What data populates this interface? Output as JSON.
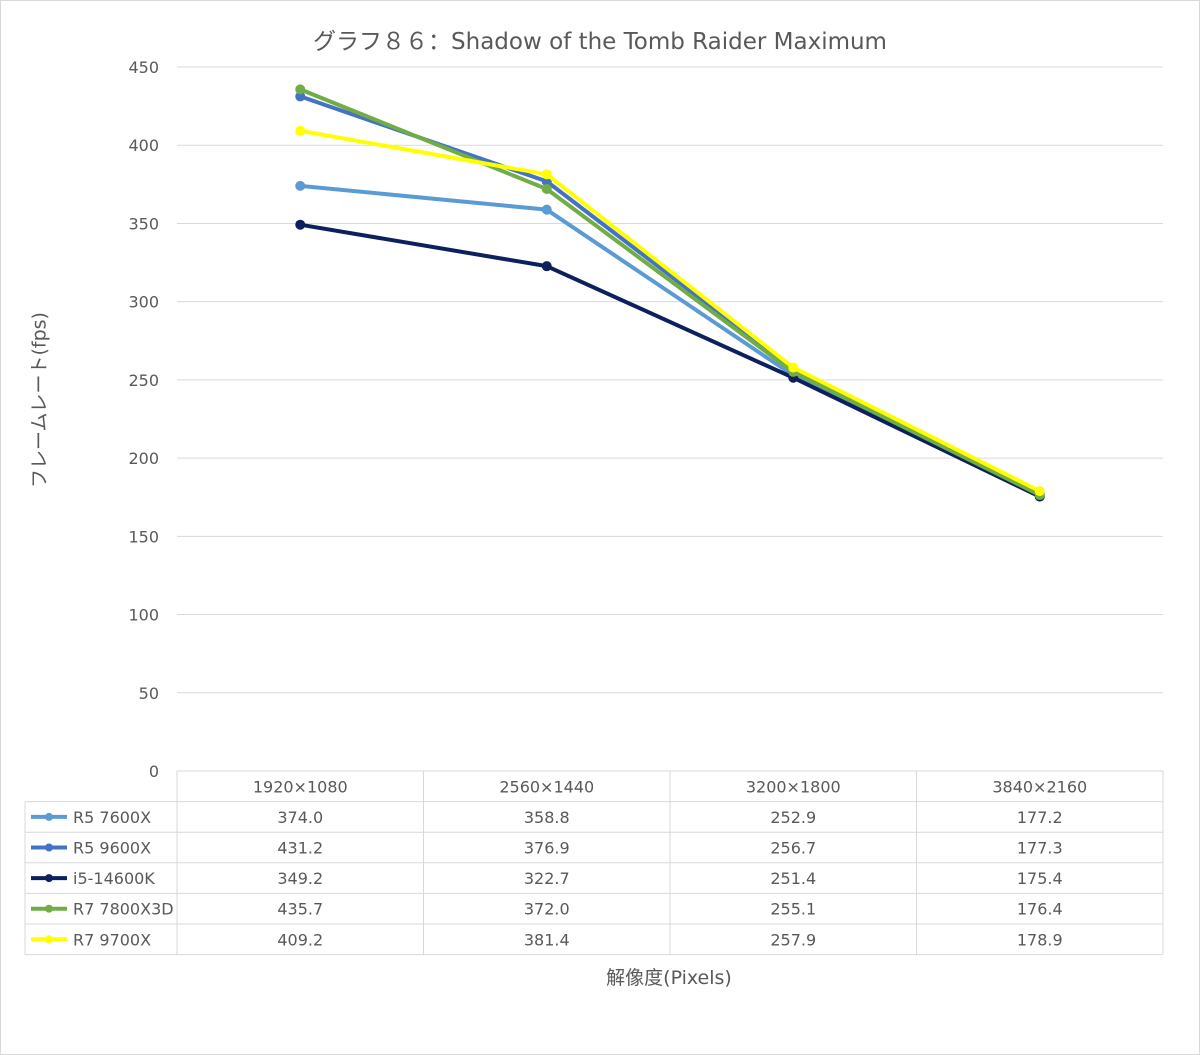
{
  "chart_data": {
    "type": "line",
    "title": "グラフ８６：Shadow of the Tomb Raider Maximum",
    "xlabel": "解像度(Pixels)",
    "ylabel": "フレームレート(fps)",
    "categories": [
      "1920×1080",
      "2560×1440",
      "3200×1800",
      "3840×2160"
    ],
    "ylim": [
      0,
      450
    ],
    "yticks": [
      0,
      50,
      100,
      150,
      200,
      250,
      300,
      350,
      400,
      450
    ],
    "grid": true,
    "legend": "data-table",
    "series": [
      {
        "name": "R5 7600X",
        "color": "#5b9bd5",
        "values": [
          374.0,
          358.8,
          252.9,
          177.2
        ],
        "labels": [
          "374.0",
          "358.8",
          "252.9",
          "177.2"
        ]
      },
      {
        "name": "R5 9600X",
        "color": "#4472c4",
        "values": [
          431.2,
          376.9,
          256.7,
          177.3
        ],
        "labels": [
          "431.2",
          "376.9",
          "256.7",
          "177.3"
        ]
      },
      {
        "name": "i5-14600K",
        "color": "#0d1f5c",
        "values": [
          349.2,
          322.7,
          251.4,
          175.4
        ],
        "labels": [
          "349.2",
          "322.7",
          "251.4",
          "175.4"
        ]
      },
      {
        "name": "R7 7800X3D",
        "color": "#70ad47",
        "values": [
          435.7,
          372.0,
          255.1,
          176.4
        ],
        "labels": [
          "435.7",
          "372.0",
          "255.1",
          "176.4"
        ]
      },
      {
        "name": "R7 9700X",
        "color": "#ffff00",
        "values": [
          409.2,
          381.4,
          257.9,
          178.9
        ],
        "labels": [
          "409.2",
          "381.4",
          "257.9",
          "178.9"
        ]
      }
    ]
  }
}
